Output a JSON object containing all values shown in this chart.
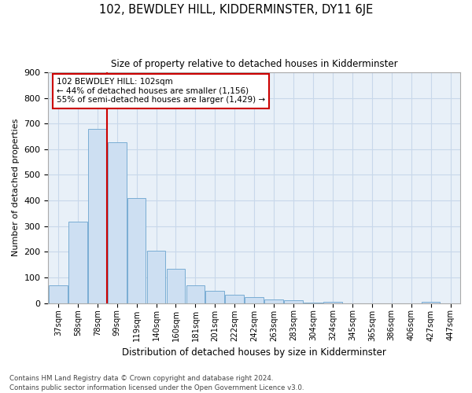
{
  "title": "102, BEWDLEY HILL, KIDDERMINSTER, DY11 6JE",
  "subtitle": "Size of property relative to detached houses in Kidderminster",
  "xlabel": "Distribution of detached houses by size in Kidderminster",
  "ylabel": "Number of detached properties",
  "bar_color": "#cddff2",
  "bar_edge_color": "#7aadd4",
  "categories": [
    "37sqm",
    "58sqm",
    "78sqm",
    "99sqm",
    "119sqm",
    "140sqm",
    "160sqm",
    "181sqm",
    "201sqm",
    "222sqm",
    "242sqm",
    "263sqm",
    "283sqm",
    "304sqm",
    "324sqm",
    "345sqm",
    "365sqm",
    "386sqm",
    "406sqm",
    "427sqm",
    "447sqm"
  ],
  "values": [
    70,
    318,
    678,
    628,
    410,
    205,
    135,
    68,
    47,
    33,
    22,
    15,
    10,
    3,
    5,
    0,
    0,
    0,
    0,
    5,
    0
  ],
  "annotation_line1": "102 BEWDLEY HILL: 102sqm",
  "annotation_line2": "← 44% of detached houses are smaller (1,156)",
  "annotation_line3": "55% of semi-detached houses are larger (1,429) →",
  "annotation_box_color": "white",
  "annotation_box_edge_color": "#cc0000",
  "vline_color": "#cc0000",
  "footer_text": "Contains HM Land Registry data © Crown copyright and database right 2024.\nContains public sector information licensed under the Open Government Licence v3.0.",
  "ylim": [
    0,
    900
  ],
  "yticks": [
    0,
    100,
    200,
    300,
    400,
    500,
    600,
    700,
    800,
    900
  ],
  "grid_color": "#c8d8ea",
  "bg_color": "#e8f0f8"
}
